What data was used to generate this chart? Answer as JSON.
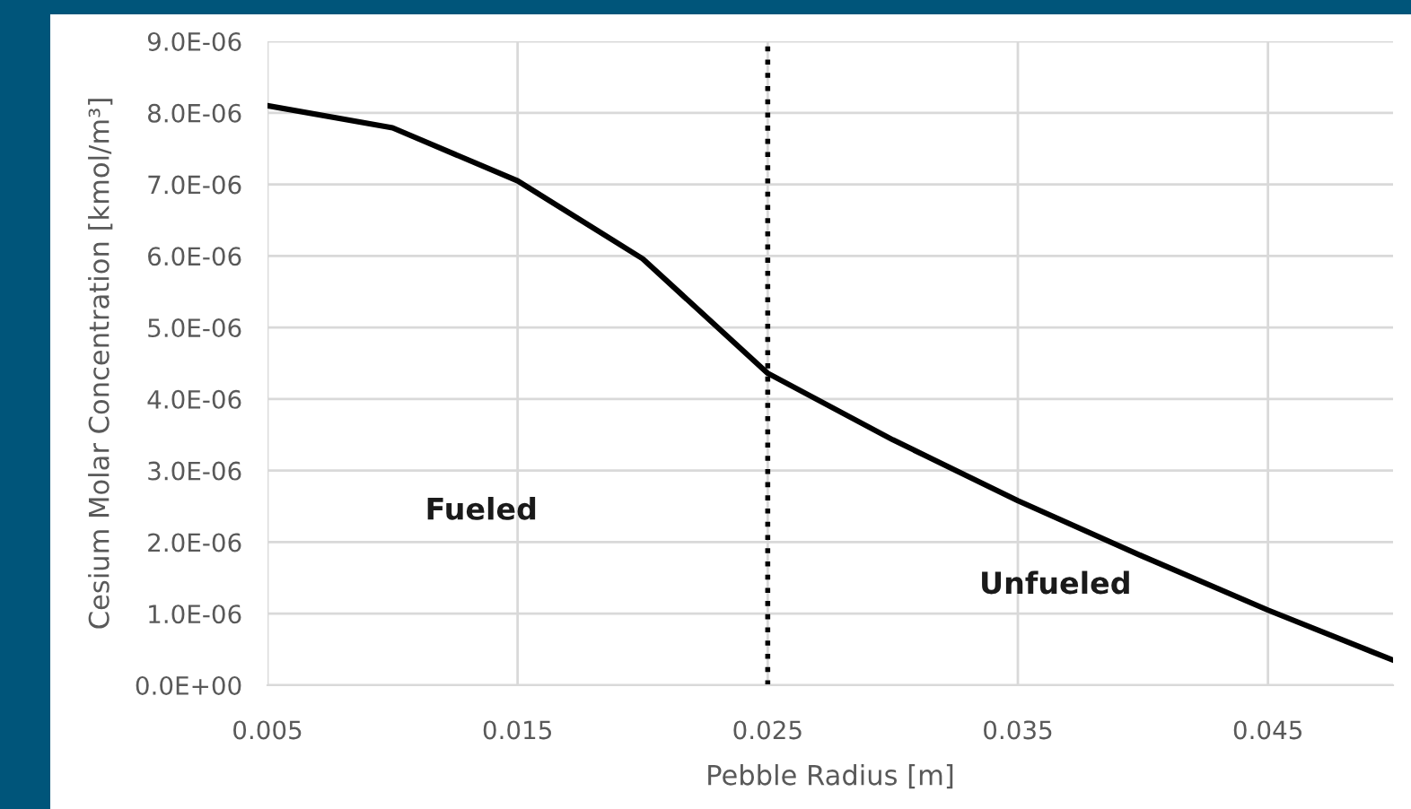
{
  "chart_data": {
    "type": "line",
    "xlabel": "Pebble Radius [m]",
    "ylabel": "Cesium Molar Concentration [kmol/m³]",
    "x": [
      0.005,
      0.01,
      0.015,
      0.02,
      0.025,
      0.03,
      0.035,
      0.04,
      0.045,
      0.05
    ],
    "series": [
      {
        "color": "#000000",
        "values": [
          8.1e-06,
          7.79e-06,
          7.05e-06,
          5.96e-06,
          4.36e-06,
          3.43e-06,
          2.58e-06,
          1.8e-06,
          1.05e-06,
          3.5e-07
        ]
      }
    ],
    "xlim": [
      0.005,
      0.05
    ],
    "xticks": [
      {
        "value": 0.005,
        "label": "0.005"
      },
      {
        "value": 0.015,
        "label": "0.015"
      },
      {
        "value": 0.025,
        "label": "0.025"
      },
      {
        "value": 0.035,
        "label": "0.035"
      },
      {
        "value": 0.045,
        "label": "0.045"
      }
    ],
    "ylim": [
      0,
      9e-06
    ],
    "yticks": [
      {
        "value": 0,
        "label": "0.0E+00"
      },
      {
        "value": 1e-06,
        "label": "1.0E-06"
      },
      {
        "value": 2e-06,
        "label": "2.0E-06"
      },
      {
        "value": 3e-06,
        "label": "3.0E-06"
      },
      {
        "value": 4e-06,
        "label": "4.0E-06"
      },
      {
        "value": 5e-06,
        "label": "5.0E-06"
      },
      {
        "value": 6e-06,
        "label": "6.0E-06"
      },
      {
        "value": 7e-06,
        "label": "7.0E-06"
      },
      {
        "value": 8e-06,
        "label": "8.0E-06"
      },
      {
        "value": 9e-06,
        "label": "9.0E-06"
      }
    ],
    "grid": true,
    "marker": "none",
    "line_style": "solid",
    "ref_lines": [
      {
        "axis": "x",
        "value": 0.025,
        "color": "#000000",
        "line_style": "dotted"
      }
    ],
    "annotations": [
      "Fueled",
      "Unfueled"
    ]
  }
}
